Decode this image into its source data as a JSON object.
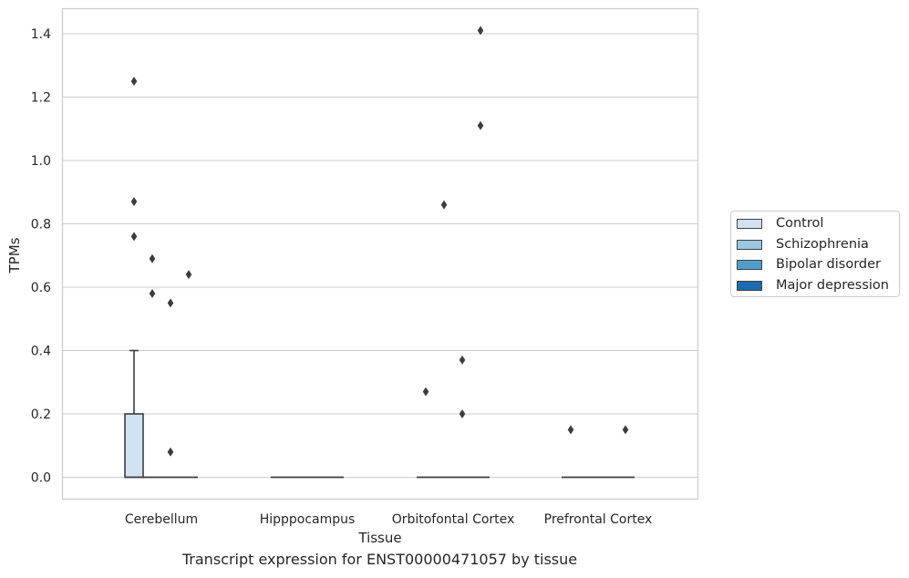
{
  "chart_data": {
    "type": "boxplot",
    "title": "",
    "caption": "Transcript expression for ENST00000471057 by tissue",
    "xlabel": "Tissue",
    "ylabel": "TPMs",
    "ylim": [
      -0.07,
      1.48
    ],
    "yticks": [
      "0.0",
      "0.2",
      "0.4",
      "0.6",
      "0.8",
      "1.0",
      "1.2",
      "1.4"
    ],
    "grid": "horizontal",
    "legend_position": "right",
    "categories": [
      "Cerebellum",
      "Hipppocampus",
      "Orbitofontal Cortex",
      "Prefrontal Cortex"
    ],
    "series": [
      {
        "name": "Control",
        "color": "#d1e2f2"
      },
      {
        "name": "Schizophrenia",
        "color": "#9ac8e0"
      },
      {
        "name": "Bipolar disorder",
        "color": "#529dcc"
      },
      {
        "name": "Major depression",
        "color": "#1c6aaf"
      }
    ],
    "boxes": [
      {
        "category": "Cerebellum",
        "series": "Control",
        "q1": 0.0,
        "median": 0.0,
        "q3": 0.2,
        "whisker_low": 0.0,
        "whisker_high": 0.4,
        "outliers": [
          0.76,
          0.87,
          1.25
        ]
      },
      {
        "category": "Cerebellum",
        "series": "Schizophrenia",
        "q1": 0.0,
        "median": 0.0,
        "q3": 0.0,
        "whisker_low": 0.0,
        "whisker_high": 0.0,
        "outliers": [
          0.58,
          0.69
        ]
      },
      {
        "category": "Cerebellum",
        "series": "Bipolar disorder",
        "q1": 0.0,
        "median": 0.0,
        "q3": 0.0,
        "whisker_low": 0.0,
        "whisker_high": 0.0,
        "outliers": [
          0.08,
          0.55
        ]
      },
      {
        "category": "Cerebellum",
        "series": "Major depression",
        "q1": 0.0,
        "median": 0.0,
        "q3": 0.0,
        "whisker_low": 0.0,
        "whisker_high": 0.0,
        "outliers": [
          0.64
        ]
      },
      {
        "category": "Hipppocampus",
        "series": "Control",
        "q1": 0.0,
        "median": 0.0,
        "q3": 0.0,
        "whisker_low": 0.0,
        "whisker_high": 0.0,
        "outliers": []
      },
      {
        "category": "Hipppocampus",
        "series": "Schizophrenia",
        "q1": 0.0,
        "median": 0.0,
        "q3": 0.0,
        "whisker_low": 0.0,
        "whisker_high": 0.0,
        "outliers": []
      },
      {
        "category": "Hipppocampus",
        "series": "Bipolar disorder",
        "q1": 0.0,
        "median": 0.0,
        "q3": 0.0,
        "whisker_low": 0.0,
        "whisker_high": 0.0,
        "outliers": []
      },
      {
        "category": "Hipppocampus",
        "series": "Major depression",
        "q1": 0.0,
        "median": 0.0,
        "q3": 0.0,
        "whisker_low": 0.0,
        "whisker_high": 0.0,
        "outliers": []
      },
      {
        "category": "Orbitofontal Cortex",
        "series": "Control",
        "q1": 0.0,
        "median": 0.0,
        "q3": 0.0,
        "whisker_low": 0.0,
        "whisker_high": 0.0,
        "outliers": [
          0.27
        ]
      },
      {
        "category": "Orbitofontal Cortex",
        "series": "Schizophrenia",
        "q1": 0.0,
        "median": 0.0,
        "q3": 0.0,
        "whisker_low": 0.0,
        "whisker_high": 0.0,
        "outliers": [
          0.86
        ]
      },
      {
        "category": "Orbitofontal Cortex",
        "series": "Bipolar disorder",
        "q1": 0.0,
        "median": 0.0,
        "q3": 0.0,
        "whisker_low": 0.0,
        "whisker_high": 0.0,
        "outliers": [
          0.2,
          0.37
        ]
      },
      {
        "category": "Orbitofontal Cortex",
        "series": "Major depression",
        "q1": 0.0,
        "median": 0.0,
        "q3": 0.0,
        "whisker_low": 0.0,
        "whisker_high": 0.0,
        "outliers": [
          1.11,
          1.41
        ]
      },
      {
        "category": "Prefrontal Cortex",
        "series": "Control",
        "q1": 0.0,
        "median": 0.0,
        "q3": 0.0,
        "whisker_low": 0.0,
        "whisker_high": 0.0,
        "outliers": [
          0.15
        ]
      },
      {
        "category": "Prefrontal Cortex",
        "series": "Schizophrenia",
        "q1": 0.0,
        "median": 0.0,
        "q3": 0.0,
        "whisker_low": 0.0,
        "whisker_high": 0.0,
        "outliers": []
      },
      {
        "category": "Prefrontal Cortex",
        "series": "Bipolar disorder",
        "q1": 0.0,
        "median": 0.0,
        "q3": 0.0,
        "whisker_low": 0.0,
        "whisker_high": 0.0,
        "outliers": []
      },
      {
        "category": "Prefrontal Cortex",
        "series": "Major depression",
        "q1": 0.0,
        "median": 0.0,
        "q3": 0.0,
        "whisker_low": 0.0,
        "whisker_high": 0.0,
        "outliers": [
          0.15
        ]
      }
    ]
  }
}
